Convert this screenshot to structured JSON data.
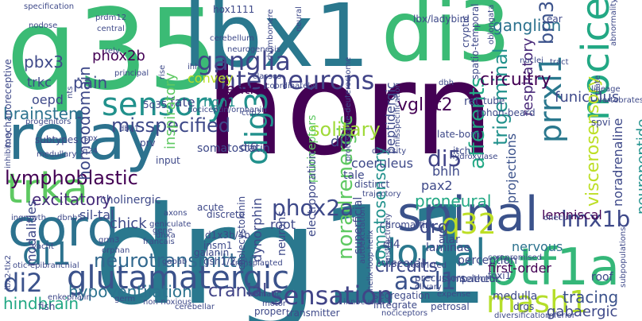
{
  "words": [
    {
      "text": "horn",
      "color": "#440154",
      "rot": 0
    },
    {
      "text": "drg11",
      "color": "#2a788e",
      "rot": 0
    },
    {
      "text": "q35",
      "color": "#3bbb75",
      "rot": 0
    },
    {
      "text": "lbx1",
      "color": "#2a788e",
      "rot": 0
    },
    {
      "text": "di3",
      "color": "#3bbb75",
      "rot": 0
    },
    {
      "text": "relay",
      "color": "#2c728e",
      "rot": 0
    },
    {
      "text": "cord",
      "color": "#2c728e",
      "rot": 0
    },
    {
      "text": "trka",
      "color": "#5ec962",
      "rot": 0
    },
    {
      "text": "spinal",
      "color": "#3b528b",
      "rot": 0
    },
    {
      "text": "ptf1a",
      "color": "#35b779",
      "rot": 0
    },
    {
      "text": "nociceptive",
      "color": "#22a884",
      "rot": -90
    },
    {
      "text": "sensory",
      "color": "#21918c",
      "rot": 0
    },
    {
      "text": "glutamatergic",
      "color": "#3b528b",
      "rot": 0
    },
    {
      "text": "dorsal",
      "color": "#2a788e",
      "rot": 0
    },
    {
      "text": "mash1",
      "color": "#b5de2b",
      "rot": 0
    },
    {
      "text": "interneurons",
      "color": "#414487",
      "rot": 0
    },
    {
      "text": "noradrenergic",
      "color": "#5ec962",
      "rot": -90
    },
    {
      "text": "prrxl1",
      "color": "#2a788e",
      "rot": -90
    },
    {
      "text": "olig3",
      "color": "#21918c",
      "rot": -90
    },
    {
      "text": "di1",
      "color": "#2c728e",
      "rot": 0
    },
    {
      "text": "di2",
      "color": "#3b528b",
      "rot": 0
    },
    {
      "text": "q32",
      "color": "#bddf26",
      "rot": 0
    },
    {
      "text": "lymphoblastic",
      "color": "#440154",
      "rot": 0
    },
    {
      "text": "ganglia",
      "color": "#414487",
      "rot": 0
    },
    {
      "text": "sensation",
      "color": "#414487",
      "rot": 0
    },
    {
      "text": "solitary",
      "color": "#a0da39",
      "rot": 0
    },
    {
      "text": "afferents",
      "color": "#22a884",
      "rot": -90
    },
    {
      "text": "neurotransmitter",
      "color": "#31688e",
      "rot": 0
    },
    {
      "text": "misspecified",
      "color": "#3e4989",
      "rot": 0
    },
    {
      "text": "homeodomain",
      "color": "#3e4989",
      "rot": -90
    },
    {
      "text": "phox2a",
      "color": "#3e4989",
      "rot": 0
    },
    {
      "text": "hypoventilation",
      "color": "#2c728e",
      "rot": 0
    },
    {
      "text": "excitatory",
      "color": "#472c7a",
      "rot": 0
    },
    {
      "text": "trigeminal",
      "color": "#21918c",
      "rot": -90
    },
    {
      "text": "lmx1b",
      "color": "#3e4989",
      "rot": 0
    },
    {
      "text": "di5",
      "color": "#414487",
      "rot": 0
    },
    {
      "text": "ascl1",
      "color": "#3b528b",
      "rot": 0
    },
    {
      "text": "circuits",
      "color": "#3e4989",
      "rot": 0
    },
    {
      "text": "drg",
      "color": "#3e4989",
      "rot": 0
    },
    {
      "text": "somatosensory",
      "color": "#21918c",
      "rot": -90
    },
    {
      "text": "vglut2",
      "color": "#440154",
      "rot": 0
    },
    {
      "text": "circuitry",
      "color": "#440154",
      "rot": 0
    },
    {
      "text": "ganglion",
      "color": "#2c728e",
      "rot": 0
    },
    {
      "text": "brn3a",
      "color": "#3b528b",
      "rot": -90
    },
    {
      "text": "cranial",
      "color": "#414487",
      "rot": 0
    },
    {
      "text": "proneural",
      "color": "#22a884",
      "rot": 0
    },
    {
      "text": "pbx3",
      "color": "#3e4989",
      "rot": 0
    },
    {
      "text": "pain",
      "color": "#3e4989",
      "rot": 0
    },
    {
      "text": "brainstem",
      "color": "#2c728e",
      "rot": 0
    },
    {
      "text": "hindbrain",
      "color": "#22a884",
      "rot": 0
    },
    {
      "text": "ventral",
      "color": "#440154",
      "rot": 0
    },
    {
      "text": "respiratory",
      "color": "#482878",
      "rot": -90
    },
    {
      "text": "funiculus",
      "color": "#3e4989",
      "rot": 0
    },
    {
      "text": "viscerosensory",
      "color": "#bddf26",
      "rot": -90
    },
    {
      "text": "neuropeptide",
      "color": "#21918c",
      "rot": -90
    },
    {
      "text": "noradrenaline",
      "color": "#3e4989",
      "rot": -90
    },
    {
      "text": "chick",
      "color": "#3e4989",
      "rot": 0
    },
    {
      "text": "tracing",
      "color": "#3b528b",
      "rot": 0
    },
    {
      "text": "gabaergic",
      "color": "#3e4989",
      "rot": 0
    },
    {
      "text": "nervous",
      "color": "#2c728e",
      "rot": 0
    },
    {
      "text": "projections",
      "color": "#3b528b",
      "rot": -90
    },
    {
      "text": "lemniscal",
      "color": "#440154",
      "rot": 0
    },
    {
      "text": "first-order",
      "color": "#440154",
      "rot": 0
    },
    {
      "text": "phox2b",
      "color": "#440154",
      "rot": 0
    },
    {
      "text": "modalities",
      "color": "#3e4989",
      "rot": -90
    },
    {
      "text": "fate",
      "color": "#3e4989",
      "rot": 0
    },
    {
      "text": "convey",
      "color": "#bddf26",
      "rot": 0
    },
    {
      "text": "inspiratory",
      "color": "#5ec962",
      "rot": -90
    },
    {
      "text": "ngn1",
      "color": "#21918c",
      "rot": 0
    },
    {
      "text": "sil-tal",
      "color": "#3e4989",
      "rot": 0
    },
    {
      "text": "cholinergic",
      "color": "#3e4989",
      "rot": 0
    },
    {
      "text": "trkc",
      "color": "#3e4989",
      "rot": 0
    },
    {
      "text": "oepd",
      "color": "#3e4989",
      "rot": 0
    },
    {
      "text": "dil",
      "color": "#3e4989",
      "rot": 0
    },
    {
      "text": "pax2",
      "color": "#3e4989",
      "rot": 0
    },
    {
      "text": "bhlh",
      "color": "#3e4989",
      "rot": 0
    },
    {
      "text": "peptidergic",
      "color": "#3e4989",
      "rot": -90
    },
    {
      "text": "pruriceptors",
      "color": "#5ec962",
      "rot": -90
    },
    {
      "text": "dynorphin",
      "color": "#3e4989",
      "rot": -90
    },
    {
      "text": "root",
      "color": "#3e4989",
      "rot": 0
    },
    {
      "text": "superficial",
      "color": "#3e4989",
      "rot": -90
    },
    {
      "text": "somatostatin",
      "color": "#3e4989",
      "rot": 0
    },
    {
      "text": "coeruleus",
      "color": "#3e4989",
      "rot": 0
    },
    {
      "text": "alar",
      "color": "#3e4989",
      "rot": 0
    },
    {
      "text": "visceral",
      "color": "#3e4989",
      "rot": 0
    },
    {
      "text": "laminae",
      "color": "#3e4989",
      "rot": 0
    },
    {
      "text": "di4",
      "color": "#3e4989",
      "rot": 0
    },
    {
      "text": "di6",
      "color": "#3e4989",
      "rot": 0
    },
    {
      "text": "ret",
      "color": "#3e4989",
      "rot": 0
    },
    {
      "text": "tube",
      "color": "#3e4989",
      "rot": 0
    },
    {
      "text": "rohon-beard",
      "color": "#3e4989",
      "rot": 0
    },
    {
      "text": "late-born",
      "color": "#3e4989",
      "rot": 0
    },
    {
      "text": "itch",
      "color": "#3e4989",
      "rot": 0
    },
    {
      "text": "tale",
      "color": "#3e4989",
      "rot": 0
    },
    {
      "text": "distinct",
      "color": "#3e4989",
      "rot": 0
    },
    {
      "text": "chromaffin",
      "color": "#3e4989",
      "rot": 0
    },
    {
      "text": "neurons",
      "color": "#3e4989",
      "rot": -90
    },
    {
      "text": "electroporation",
      "color": "#3e4989",
      "rot": -90
    },
    {
      "text": "d1x3b/4b",
      "color": "#3e4989",
      "rot": 0
    },
    {
      "text": "acute",
      "color": "#3e4989",
      "rot": 0
    },
    {
      "text": "discrete",
      "color": "#3e4989",
      "rot": 0
    },
    {
      "text": "insm1",
      "color": "#3e4989",
      "rot": 0
    },
    {
      "text": "galanin",
      "color": "#3e4989",
      "rot": 0
    },
    {
      "text": "gsh1/2",
      "color": "#3e4989",
      "rot": 0
    },
    {
      "text": "cholecystokinin",
      "color": "#3e4989",
      "rot": -90
    },
    {
      "text": "segregation",
      "color": "#3e4989",
      "rot": 0
    },
    {
      "text": "integrate",
      "color": "#3e4989",
      "rot": 0
    },
    {
      "text": "transmitter",
      "color": "#3e4989",
      "rot": 0
    },
    {
      "text": "proper",
      "color": "#3e4989",
      "rot": 0
    },
    {
      "text": "fish",
      "color": "#3e4989",
      "rot": 0
    },
    {
      "text": "medulla",
      "color": "#3e4989",
      "rot": 0
    },
    {
      "text": "drgs",
      "color": "#3e4989",
      "rot": 0
    },
    {
      "text": "diversification",
      "color": "#3e4989",
      "rot": 0
    },
    {
      "text": "inferior",
      "color": "#3e4989",
      "rot": 0
    },
    {
      "text": "roof",
      "color": "#3e4989",
      "rot": 0
    },
    {
      "text": "selector",
      "color": "#3e4989",
      "rot": 0
    },
    {
      "text": "perception",
      "color": "#3e4989",
      "rot": 0
    },
    {
      "text": "onecut",
      "color": "#3e4989",
      "rot": 0
    },
    {
      "text": "foxi1",
      "color": "#3e4989",
      "rot": 0
    },
    {
      "text": "expense",
      "color": "#3e4989",
      "rot": 0
    },
    {
      "text": "petrosal",
      "color": "#3e4989",
      "rot": 0
    },
    {
      "text": "nociceptors",
      "color": "#3e4989",
      "rot": 0
    },
    {
      "text": "sympathetic",
      "color": "#3e4989",
      "rot": 0
    },
    {
      "text": "restricted",
      "color": "#3e4989",
      "rot": 0
    },
    {
      "text": "olivary",
      "color": "#3e4989",
      "rot": 0
    },
    {
      "text": "precursors",
      "color": "#3e4989",
      "rot": 0
    },
    {
      "text": "innocuous",
      "color": "#3e4989",
      "rot": 0
    },
    {
      "text": "trajectory",
      "color": "#3e4989",
      "rot": 0
    },
    {
      "text": "germ",
      "color": "#3e4989",
      "rot": 0
    },
    {
      "text": "medullary",
      "color": "#3e4989",
      "rot": 0
    },
    {
      "text": "q24",
      "color": "#3e4989",
      "rot": 0
    },
    {
      "text": "prv",
      "color": "#3e4989",
      "rot": 0
    },
    {
      "text": "input",
      "color": "#3e4989",
      "rot": 0
    },
    {
      "text": "subtypes",
      "color": "#3e4989",
      "rot": 0
    },
    {
      "text": "progenitors",
      "color": "#3e4989",
      "rot": 0
    },
    {
      "text": "mechanoreceptive",
      "color": "#3e4989",
      "rot": -90
    },
    {
      "text": "inhibitory",
      "color": "#3e4989",
      "rot": -90
    },
    {
      "text": "ingrowth",
      "color": "#3e4989",
      "rot": 0
    },
    {
      "text": "geniculate",
      "color": "#3e4989",
      "rot": 0
    },
    {
      "text": "vacht",
      "color": "#3e4989",
      "rot": 0
    },
    {
      "text": "otic-epibranchial",
      "color": "#3e4989",
      "rot": 0
    },
    {
      "text": "lbx2-tlx2",
      "color": "#3e4989",
      "rot": -90
    },
    {
      "text": "enkephalin",
      "color": "#3e4989",
      "rot": 0
    },
    {
      "text": "non-noxious",
      "color": "#3e4989",
      "rot": 0
    },
    {
      "text": "cerebellar",
      "color": "#3e4989",
      "rot": 0
    },
    {
      "text": "francais",
      "color": "#3e4989",
      "rot": 0
    },
    {
      "text": "grm3",
      "color": "#3e4989",
      "rot": 0
    },
    {
      "text": "orphan",
      "color": "#3e4989",
      "rot": 0
    },
    {
      "text": "transplanted",
      "color": "#3e4989",
      "rot": 0
    },
    {
      "text": "motor",
      "color": "#3e4989",
      "rot": 0
    },
    {
      "text": "somatic",
      "color": "#3e4989",
      "rot": 0
    },
    {
      "text": "instructively",
      "color": "#3e4989",
      "rot": -90
    },
    {
      "text": "autoexcitation",
      "color": "#3e4989",
      "rot": -90
    },
    {
      "text": "compromised",
      "color": "#3e4989",
      "rot": 0
    },
    {
      "text": "axons",
      "color": "#3e4989",
      "rot": 0
    },
    {
      "text": "hydroxylase",
      "color": "#3e4989",
      "rot": 0
    },
    {
      "text": "protostome-deuterostome",
      "color": "#3e4989",
      "rot": -90
    },
    {
      "text": "misspecification",
      "color": "#3e4989",
      "rot": -90
    },
    {
      "text": "cryptic",
      "color": "#3e4989",
      "rot": -90
    },
    {
      "text": "spatio-temporal",
      "color": "#3e4989",
      "rot": -90
    },
    {
      "text": "oblongata",
      "color": "#3e4989",
      "rot": -90
    },
    {
      "text": "dbh",
      "color": "#3e4989",
      "rot": 0
    },
    {
      "text": "nuclei",
      "color": "#3e4989",
      "rot": 0
    },
    {
      "text": "tract",
      "color": "#3e4989",
      "rot": 0
    },
    {
      "text": "plate",
      "color": "#3e4989",
      "rot": -90
    },
    {
      "text": "ear",
      "color": "#3e4989",
      "rot": 0
    },
    {
      "text": "abnormality",
      "color": "#3e4989",
      "rot": -90
    },
    {
      "text": "lineage",
      "color": "#3e4989",
      "rot": 0
    },
    {
      "text": "vertebrates",
      "color": "#3e4989",
      "rot": 0
    },
    {
      "text": "spvi",
      "color": "#3e4989",
      "rot": 0
    },
    {
      "text": "subpopulations",
      "color": "#3e4989",
      "rot": -90
    },
    {
      "text": "lbx/ladybird",
      "color": "#3e4989",
      "rot": 0
    },
    {
      "text": "hox1111",
      "color": "#3e4989",
      "rot": 0
    },
    {
      "text": "nodose",
      "color": "#3e4989",
      "rot": 0
    },
    {
      "text": "specification",
      "color": "#3e4989",
      "rot": 0
    },
    {
      "text": "prdm12",
      "color": "#3e4989",
      "rot": 0
    },
    {
      "text": "central",
      "color": "#3e4989",
      "rot": 0
    },
    {
      "text": "rhombomere",
      "color": "#3e4989",
      "rot": -90
    },
    {
      "text": "neural",
      "color": "#3e4989",
      "rot": -90
    },
    {
      "text": "neurogenesis",
      "color": "#3e4989",
      "rot": 0
    },
    {
      "text": "cerebellum",
      "color": "#3e4989",
      "rot": 0
    },
    {
      "text": "rely",
      "color": "#3e4989",
      "rot": 0
    },
    {
      "text": "principal",
      "color": "#3e4989",
      "rot": 0
    },
    {
      "text": "rise",
      "color": "#3e4989",
      "rot": -90
    },
    {
      "text": "classes",
      "color": "#3e4989",
      "rot": 0
    },
    {
      "text": "coordinately",
      "color": "#3e4989",
      "rot": 0
    },
    {
      "text": "5q35",
      "color": "#3e4989",
      "rot": 0
    },
    {
      "text": "ctip2",
      "color": "#3e4989",
      "rot": 0
    },
    {
      "text": "nociceptin/orphanin",
      "color": "#3e4989",
      "rot": 0
    },
    {
      "text": "diversity",
      "color": "#3e4989",
      "rot": 0
    },
    {
      "text": "ihh",
      "color": "#3e4989",
      "rot": 0
    },
    {
      "text": "sox",
      "color": "#3e4989",
      "rot": 0
    },
    {
      "text": "nts",
      "color": "#3e4989",
      "rot": -90
    },
    {
      "text": "dbx1",
      "color": "#3e4989",
      "rot": 0
    },
    {
      "text": "dbnb5",
      "color": "#3e4989",
      "rot": 0
    },
    {
      "text": "gabab",
      "color": "#3e4989",
      "rot": 0
    },
    {
      "text": "gene",
      "color": "#3e4989",
      "rot": 0
    },
    {
      "text": "dhxa",
      "color": "#3e4989",
      "rot": 0
    },
    {
      "text": "helix-loop-helix",
      "color": "#3e4989",
      "rot": -90
    }
  ]
}
